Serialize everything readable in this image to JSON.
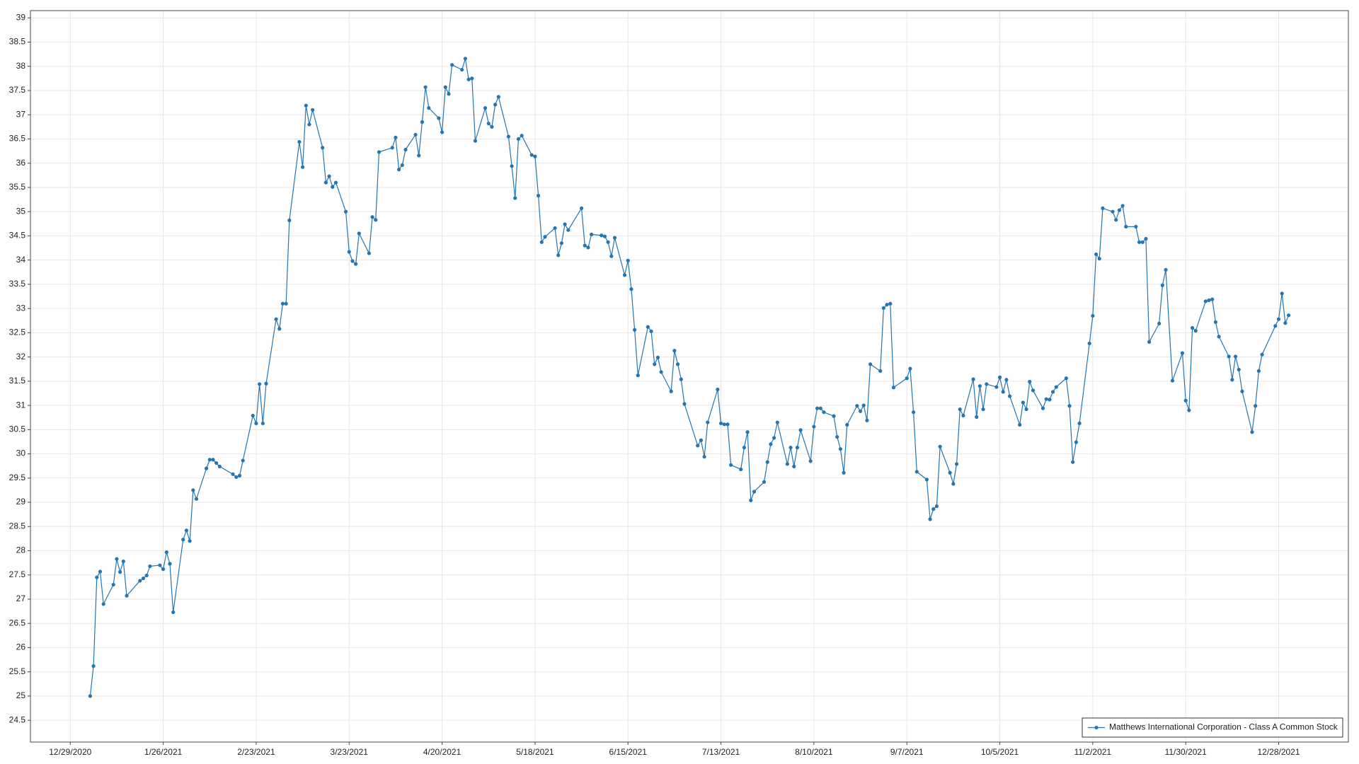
{
  "chart_data": {
    "type": "line",
    "xlim": [
      "12/17/2020",
      "1/18/2022"
    ],
    "xticks": [
      "12/29/2020",
      "1/26/2021",
      "2/23/2021",
      "3/23/2021",
      "4/20/2021",
      "5/18/2021",
      "6/15/2021",
      "7/13/2021",
      "8/10/2021",
      "9/7/2021",
      "10/5/2021",
      "11/2/2021",
      "11/30/2021",
      "12/28/2021"
    ],
    "ylim": [
      24.05,
      39.15
    ],
    "yticks": [
      24.5,
      25,
      25.5,
      26,
      26.5,
      27,
      27.5,
      28,
      28.5,
      29,
      29.5,
      30,
      30.5,
      31,
      31.5,
      32,
      32.5,
      33,
      33.5,
      34,
      34.5,
      35,
      35.5,
      36,
      36.5,
      37,
      37.5,
      38,
      38.5,
      39
    ],
    "grid": true,
    "legend": "bottom-right",
    "x": [
      "1/4/2021",
      "1/5/2021",
      "1/6/2021",
      "1/7/2021",
      "1/8/2021",
      "1/11/2021",
      "1/12/2021",
      "1/13/2021",
      "1/14/2021",
      "1/15/2021",
      "1/19/2021",
      "1/20/2021",
      "1/21/2021",
      "1/22/2021",
      "1/25/2021",
      "1/26/2021",
      "1/27/2021",
      "1/28/2021",
      "1/29/2021",
      "2/1/2021",
      "2/2/2021",
      "2/3/2021",
      "2/4/2021",
      "2/5/2021",
      "2/8/2021",
      "2/9/2021",
      "2/10/2021",
      "2/11/2021",
      "2/12/2021",
      "2/16/2021",
      "2/17/2021",
      "2/18/2021",
      "2/19/2021",
      "2/22/2021",
      "2/23/2021",
      "2/24/2021",
      "2/25/2021",
      "2/26/2021",
      "3/1/2021",
      "3/2/2021",
      "3/3/2021",
      "3/4/2021",
      "3/5/2021",
      "3/8/2021",
      "3/9/2021",
      "3/10/2021",
      "3/11/2021",
      "3/12/2021",
      "3/15/2021",
      "3/16/2021",
      "3/17/2021",
      "3/18/2021",
      "3/19/2021",
      "3/22/2021",
      "3/23/2021",
      "3/24/2021",
      "3/25/2021",
      "3/26/2021",
      "3/29/2021",
      "3/30/2021",
      "3/31/2021",
      "4/1/2021",
      "4/5/2021",
      "4/6/2021",
      "4/7/2021",
      "4/8/2021",
      "4/9/2021",
      "4/12/2021",
      "4/13/2021",
      "4/14/2021",
      "4/15/2021",
      "4/16/2021",
      "4/19/2021",
      "4/20/2021",
      "4/21/2021",
      "4/22/2021",
      "4/23/2021",
      "4/26/2021",
      "4/27/2021",
      "4/28/2021",
      "4/29/2021",
      "4/30/2021",
      "5/3/2021",
      "5/4/2021",
      "5/5/2021",
      "5/6/2021",
      "5/7/2021",
      "5/10/2021",
      "5/11/2021",
      "5/12/2021",
      "5/13/2021",
      "5/14/2021",
      "5/17/2021",
      "5/18/2021",
      "5/19/2021",
      "5/20/2021",
      "5/21/2021",
      "5/24/2021",
      "5/25/2021",
      "5/26/2021",
      "5/27/2021",
      "5/28/2021",
      "6/1/2021",
      "6/2/2021",
      "6/3/2021",
      "6/4/2021",
      "6/7/2021",
      "6/8/2021",
      "6/9/2021",
      "6/10/2021",
      "6/11/2021",
      "6/14/2021",
      "6/15/2021",
      "6/16/2021",
      "6/17/2021",
      "6/18/2021",
      "6/21/2021",
      "6/22/2021",
      "6/23/2021",
      "6/24/2021",
      "6/25/2021",
      "6/28/2021",
      "6/29/2021",
      "6/30/2021",
      "7/1/2021",
      "7/2/2021",
      "7/6/2021",
      "7/7/2021",
      "7/8/2021",
      "7/9/2021",
      "7/12/2021",
      "7/13/2021",
      "7/14/2021",
      "7/15/2021",
      "7/16/2021",
      "7/19/2021",
      "7/20/2021",
      "7/21/2021",
      "7/22/2021",
      "7/23/2021",
      "7/26/2021",
      "7/27/2021",
      "7/28/2021",
      "7/29/2021",
      "7/30/2021",
      "8/2/2021",
      "8/3/2021",
      "8/4/2021",
      "8/5/2021",
      "8/6/2021",
      "8/9/2021",
      "8/10/2021",
      "8/11/2021",
      "8/12/2021",
      "8/13/2021",
      "8/16/2021",
      "8/17/2021",
      "8/18/2021",
      "8/19/2021",
      "8/20/2021",
      "8/23/2021",
      "8/24/2021",
      "8/25/2021",
      "8/26/2021",
      "8/27/2021",
      "8/30/2021",
      "8/31/2021",
      "9/1/2021",
      "9/2/2021",
      "9/3/2021",
      "9/7/2021",
      "9/8/2021",
      "9/9/2021",
      "9/10/2021",
      "9/13/2021",
      "9/14/2021",
      "9/15/2021",
      "9/16/2021",
      "9/17/2021",
      "9/20/2021",
      "9/21/2021",
      "9/22/2021",
      "9/23/2021",
      "9/24/2021",
      "9/27/2021",
      "9/28/2021",
      "9/29/2021",
      "9/30/2021",
      "10/1/2021",
      "10/4/2021",
      "10/5/2021",
      "10/6/2021",
      "10/7/2021",
      "10/8/2021",
      "10/11/2021",
      "10/12/2021",
      "10/13/2021",
      "10/14/2021",
      "10/15/2021",
      "10/18/2021",
      "10/19/2021",
      "10/20/2021",
      "10/21/2021",
      "10/22/2021",
      "10/25/2021",
      "10/26/2021",
      "10/27/2021",
      "10/28/2021",
      "10/29/2021",
      "11/1/2021",
      "11/2/2021",
      "11/3/2021",
      "11/4/2021",
      "11/5/2021",
      "11/8/2021",
      "11/9/2021",
      "11/10/2021",
      "11/11/2021",
      "11/12/2021",
      "11/15/2021",
      "11/16/2021",
      "11/17/2021",
      "11/18/2021",
      "11/19/2021",
      "11/22/2021",
      "11/23/2021",
      "11/24/2021",
      "11/26/2021",
      "11/29/2021",
      "11/30/2021",
      "12/1/2021",
      "12/2/2021",
      "12/3/2021",
      "12/6/2021",
      "12/7/2021",
      "12/8/2021",
      "12/9/2021",
      "12/10/2021",
      "12/13/2021",
      "12/14/2021",
      "12/15/2021",
      "12/16/2021",
      "12/17/2021",
      "12/20/2021",
      "12/21/2021",
      "12/22/2021",
      "12/23/2021",
      "12/27/2021",
      "12/28/2021",
      "12/29/2021",
      "12/30/2021",
      "12/31/2021"
    ],
    "series": [
      {
        "name": "Matthews International Corporation - Class A Common Stock",
        "color": "#2475b0",
        "values": [
          25.0,
          25.62,
          27.45,
          27.57,
          26.9,
          27.3,
          27.83,
          27.56,
          27.78,
          27.07,
          27.38,
          27.43,
          27.49,
          27.68,
          27.7,
          27.62,
          27.97,
          27.73,
          26.73,
          28.23,
          28.42,
          28.2,
          29.25,
          29.07,
          29.7,
          29.88,
          29.88,
          29.81,
          29.74,
          29.58,
          29.52,
          29.55,
          29.86,
          30.79,
          30.63,
          31.44,
          30.63,
          31.45,
          32.78,
          32.58,
          33.1,
          33.1,
          34.82,
          36.44,
          35.92,
          37.19,
          36.8,
          37.1,
          36.32,
          35.6,
          35.73,
          35.51,
          35.6,
          35.0,
          34.17,
          33.98,
          33.92,
          34.55,
          34.14,
          34.89,
          34.83,
          36.23,
          36.32,
          36.53,
          35.87,
          35.96,
          36.28,
          36.59,
          36.16,
          36.85,
          37.57,
          37.14,
          36.93,
          36.64,
          37.57,
          37.43,
          38.03,
          37.93,
          38.16,
          37.73,
          37.75,
          36.46,
          37.14,
          36.82,
          36.75,
          37.21,
          37.37,
          36.55,
          35.94,
          35.28,
          36.5,
          36.57,
          36.17,
          36.14,
          35.33,
          34.37,
          34.48,
          34.66,
          34.1,
          34.35,
          34.74,
          34.62,
          35.07,
          34.3,
          34.26,
          34.53,
          34.51,
          34.49,
          34.37,
          34.08,
          34.46,
          33.69,
          33.99,
          33.4,
          32.56,
          31.62,
          32.62,
          32.53,
          31.85,
          31.99,
          31.69,
          31.29,
          32.13,
          31.85,
          31.54,
          31.03,
          30.17,
          30.28,
          29.94,
          30.65,
          31.33,
          30.63,
          30.61,
          30.61,
          29.77,
          29.68,
          30.13,
          30.45,
          29.04,
          29.22,
          29.42,
          29.83,
          30.2,
          30.33,
          30.65,
          29.79,
          30.13,
          29.74,
          30.13,
          30.49,
          29.85,
          30.56,
          30.94,
          30.94,
          30.86,
          30.78,
          30.35,
          30.1,
          29.61,
          30.6,
          30.99,
          30.88,
          31.0,
          30.69,
          31.85,
          31.71,
          33.01,
          33.08,
          33.1,
          31.37,
          31.56,
          31.76,
          30.86,
          29.63,
          29.47,
          28.65,
          28.86,
          28.92,
          30.15,
          29.61,
          29.38,
          29.79,
          30.92,
          30.79,
          31.54,
          30.76,
          31.4,
          30.92,
          31.44,
          31.38,
          31.58,
          31.28,
          31.53,
          31.19,
          30.6,
          31.06,
          30.92,
          31.49,
          31.31,
          30.94,
          31.13,
          31.12,
          31.28,
          31.38,
          31.56,
          30.99,
          29.83,
          30.24,
          30.63,
          32.28,
          32.85,
          34.12,
          34.03,
          35.07,
          35.0,
          34.83,
          35.03,
          35.12,
          34.69,
          34.69,
          34.37,
          34.37,
          34.44,
          32.31,
          32.69,
          33.48,
          33.8,
          31.51,
          32.08,
          31.1,
          30.9,
          32.6,
          32.54,
          33.15,
          33.17,
          33.19,
          32.72,
          32.42,
          32.01,
          31.53,
          32.01,
          31.74,
          31.29,
          30.45,
          30.99,
          31.71,
          32.05,
          32.64,
          32.78,
          33.31,
          32.7,
          32.86
        ]
      }
    ]
  }
}
